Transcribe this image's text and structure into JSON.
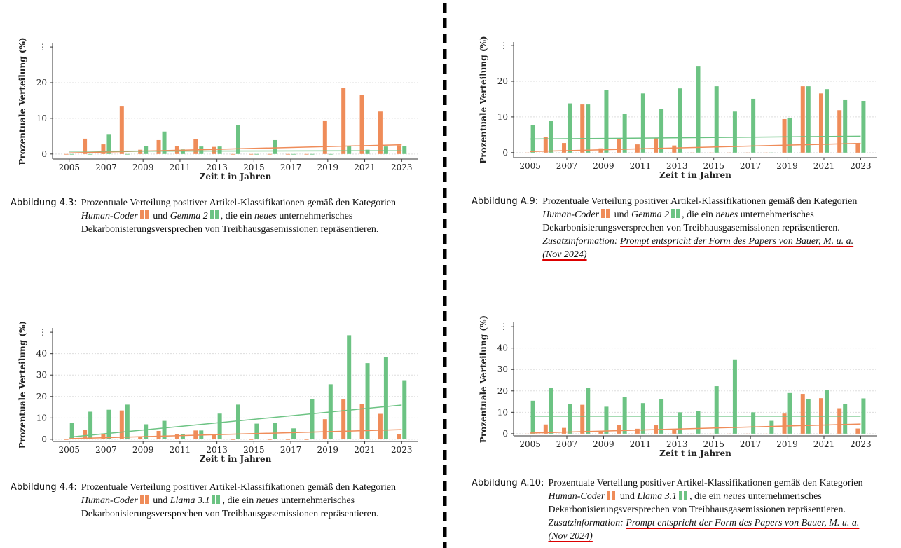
{
  "chart_data": [
    {
      "type": "bar",
      "ylabel": "Prozentuale Verteilung (%)",
      "xlabel": "Zeit t in Jahren",
      "x": [
        2005,
        2006,
        2007,
        2008,
        2009,
        2010,
        2011,
        2012,
        2013,
        2014,
        2015,
        2016,
        2017,
        2018,
        2019,
        2020,
        2021,
        2022,
        2023
      ],
      "xlim": [
        2004.1,
        2023.9
      ],
      "xticks": [
        2005,
        2007,
        2009,
        2011,
        2013,
        2015,
        2017,
        2019,
        2021,
        2023
      ],
      "ylim": [
        -2,
        31
      ],
      "yticks": [
        0,
        10,
        20,
        {
          "value": 30,
          "label": "⋮"
        }
      ],
      "grid": true,
      "series": [
        {
          "name": "Human-Coder",
          "color": "#ef8c59",
          "values": [
            0,
            4.3,
            2.7,
            13.5,
            1.2,
            3.9,
            2.3,
            4.1,
            2.0,
            0,
            0,
            0,
            0,
            0,
            9.4,
            18.6,
            16.6,
            11.9,
            2.4
          ],
          "trend": [
            0.3,
            2.6
          ]
        },
        {
          "name": "Gemma 2",
          "color": "#6cc383",
          "values": [
            0,
            0,
            5.6,
            0,
            2.3,
            6.3,
            1.3,
            2.1,
            2.1,
            8.2,
            0,
            3.9,
            0,
            0,
            0,
            2.3,
            1.2,
            2.1,
            2.3
          ],
          "trend": [
            0.8,
            0.9
          ]
        }
      ],
      "caption": {
        "label": "Abbildung 4.3:",
        "intro": "Prozentuale Verteilung positiver Artikel-Klassifikationen gemäß den Kategorien",
        "joiner": "und",
        "outro_pre": ", die ein",
        "emphasis": "neues",
        "outro": "unternehmerisches Dekarbonisierungsversprechen von Treibhausgasemissionen repräsentieren."
      }
    },
    {
      "type": "bar",
      "ylabel": "Prozentuale Verteilung (%)",
      "xlabel": "Zeit t in Jahren",
      "x": [
        2005,
        2006,
        2007,
        2008,
        2009,
        2010,
        2011,
        2012,
        2013,
        2014,
        2015,
        2016,
        2017,
        2018,
        2019,
        2020,
        2021,
        2022,
        2023
      ],
      "xlim": [
        2004.1,
        2023.9
      ],
      "xticks": [
        2005,
        2007,
        2009,
        2011,
        2013,
        2015,
        2017,
        2019,
        2021,
        2023
      ],
      "ylim": [
        -2,
        31
      ],
      "yticks": [
        0,
        10,
        20,
        {
          "value": 30,
          "label": "⋮"
        }
      ],
      "grid": true,
      "series": [
        {
          "name": "Human-Coder",
          "color": "#ef8c59",
          "values": [
            0,
            4.3,
            2.7,
            13.5,
            1.2,
            3.9,
            2.3,
            4.1,
            2.0,
            0,
            0,
            0,
            0,
            0,
            9.4,
            18.6,
            16.6,
            11.9,
            2.4
          ],
          "trend": [
            0.3,
            2.6
          ]
        },
        {
          "name": "Gemma 2",
          "color": "#6cc383",
          "values": [
            7.8,
            8.8,
            13.8,
            13.5,
            17.5,
            10.9,
            16.6,
            12.3,
            18.0,
            24.3,
            18.6,
            11.5,
            15.1,
            0,
            9.6,
            18.6,
            17.8,
            14.9,
            14.5
          ],
          "trend": [
            3.8,
            4.6
          ]
        }
      ],
      "caption": {
        "label": "Abbildung A.9:",
        "intro": "Prozentuale Verteilung positiver Artikel-Klassifikationen gemäß den Kategorien",
        "joiner": "und",
        "outro_pre": ", die ein",
        "emphasis": "neues",
        "outro": "unternehmerisches Dekarbonisierungsversprechen von Treibhausgasemissionen repräsentieren.",
        "note_label": "Zusatzinformation:",
        "note": "Prompt entspricht der Form des Papers von Bauer, M. u. a. (Nov 2024)"
      }
    },
    {
      "type": "bar",
      "ylabel": "Prozentuale Verteilung (%)",
      "xlabel": "Zeit t in Jahren",
      "x": [
        2005,
        2006,
        2007,
        2008,
        2009,
        2010,
        2011,
        2012,
        2013,
        2014,
        2015,
        2016,
        2017,
        2018,
        2019,
        2020,
        2021,
        2022,
        2023
      ],
      "xlim": [
        2004.1,
        2023.9
      ],
      "xticks": [
        2005,
        2007,
        2009,
        2011,
        2013,
        2015,
        2017,
        2019,
        2021,
        2023
      ],
      "ylim": [
        -2,
        52
      ],
      "yticks": [
        0,
        10,
        20,
        30,
        40,
        {
          "value": 50,
          "label": "⋮"
        }
      ],
      "grid": true,
      "series": [
        {
          "name": "Human-Coder",
          "color": "#ef8c59",
          "values": [
            0,
            4.3,
            2.7,
            13.5,
            1.2,
            3.9,
            2.3,
            4.1,
            2.0,
            0,
            0,
            0,
            0,
            0,
            9.4,
            18.6,
            16.6,
            11.9,
            2.4
          ],
          "trend": [
            0.3,
            4.5
          ]
        },
        {
          "name": "Llama 3.1",
          "color": "#6cc383",
          "values": [
            7.6,
            12.9,
            13.8,
            16.2,
            7.0,
            8.6,
            2.4,
            4.1,
            12.0,
            16.2,
            7.3,
            7.8,
            5.1,
            18.9,
            25.7,
            48.6,
            35.6,
            38.5,
            27.6
          ],
          "trend": [
            1.0,
            16.0
          ]
        }
      ],
      "caption": {
        "label": "Abbildung 4.4:",
        "intro": "Prozentuale Verteilung positiver Artikel-Klassifikationen gemäß den Kategorien",
        "joiner": "und",
        "outro_pre": ", die ein",
        "emphasis": "neues",
        "outro": "unternehmerisches Dekarbonisierungsversprechen von Treibhausgasemissionen repräsentieren."
      }
    },
    {
      "type": "bar",
      "ylabel": "Prozentuale Verteilung (%)",
      "xlabel": "Zeit t in Jahren",
      "x": [
        2005,
        2006,
        2007,
        2008,
        2009,
        2010,
        2011,
        2012,
        2013,
        2014,
        2015,
        2016,
        2017,
        2018,
        2019,
        2020,
        2021,
        2022,
        2023
      ],
      "xlim": [
        2004.1,
        2023.9
      ],
      "xticks": [
        2005,
        2007,
        2009,
        2011,
        2013,
        2015,
        2017,
        2019,
        2021,
        2023
      ],
      "ylim": [
        -2,
        52
      ],
      "yticks": [
        0,
        10,
        20,
        30,
        40,
        {
          "value": 50,
          "label": "⋮"
        }
      ],
      "grid": true,
      "series": [
        {
          "name": "Human-Coder",
          "color": "#ef8c59",
          "values": [
            0,
            4.3,
            2.7,
            13.5,
            1.2,
            3.9,
            2.3,
            4.1,
            2.0,
            0,
            0,
            0,
            0,
            0,
            9.4,
            18.6,
            16.6,
            11.9,
            2.4
          ],
          "trend": [
            0.3,
            4.5
          ]
        },
        {
          "name": "Llama 3.1",
          "color": "#6cc383",
          "values": [
            15.4,
            21.5,
            13.8,
            21.5,
            12.6,
            17.0,
            14.3,
            16.3,
            10.0,
            10.6,
            22.2,
            34.4,
            10.0,
            6.0,
            19.0,
            16.3,
            20.4,
            13.8,
            16.5
          ],
          "trend": [
            8.2,
            8.2
          ]
        }
      ],
      "caption": {
        "label": "Abbildung A.10:",
        "intro": "Prozentuale Verteilung positiver Artikel-Klassifikationen gemäß den Kategorien",
        "joiner": "und",
        "outro_pre": ", die ein",
        "emphasis": "neues",
        "outro": "unternehmerisches Dekarbonisierungsversprechen von Treibhausgasemissionen repräsentieren.",
        "note_label": "Zusatzinformation:",
        "note": "Prompt entspricht der Form des Papers von Bauer, M. u. a. (Nov 2024)"
      }
    }
  ]
}
